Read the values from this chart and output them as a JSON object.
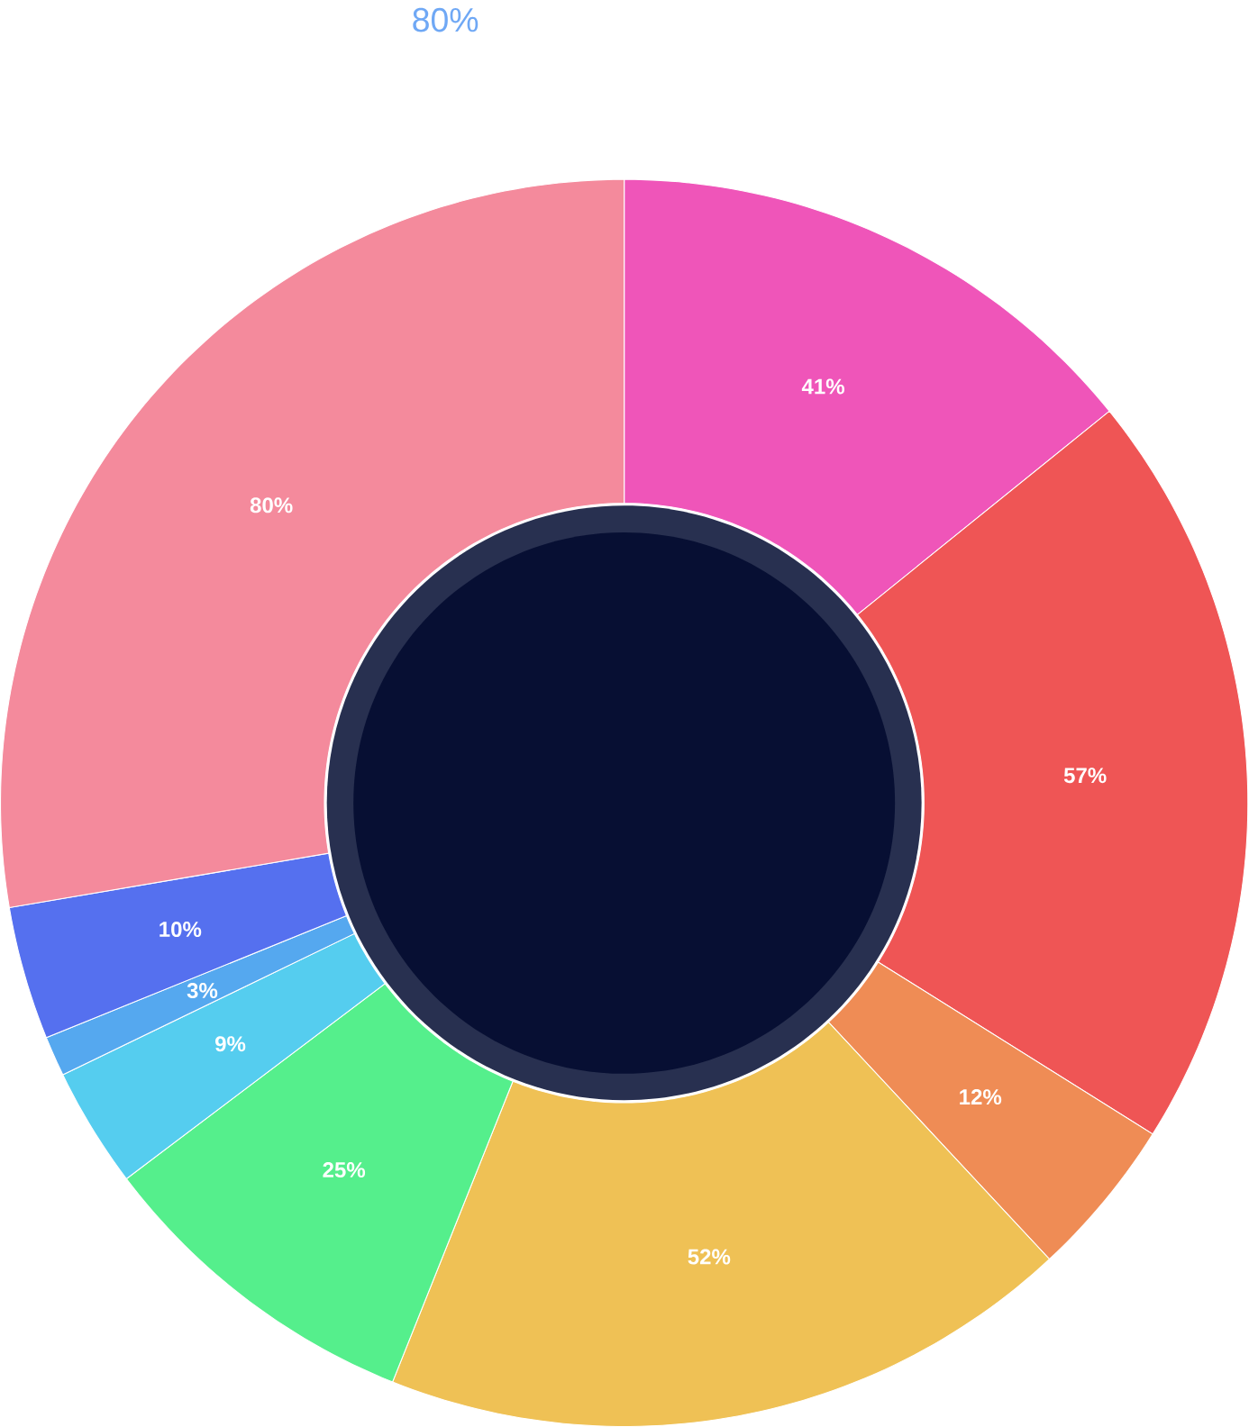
{
  "chart_data": {
    "type": "donut",
    "title": "80%",
    "categories": [
      null,
      null,
      null,
      null,
      null,
      null,
      null,
      null,
      null
    ],
    "values": [
      41,
      57,
      12,
      52,
      25,
      9,
      3,
      10,
      80
    ],
    "colors": [
      "#ef55b9",
      "#ef5555",
      "#ef8c55",
      "#efc155",
      "#55ef8c",
      "#55cdef",
      "#55a8ef",
      "#5570ef",
      "#f48a9c"
    ],
    "value_labels": [
      "41%",
      "57%",
      "12%",
      "52%",
      "25%",
      "9%",
      "3%",
      "10%",
      "80%"
    ]
  }
}
